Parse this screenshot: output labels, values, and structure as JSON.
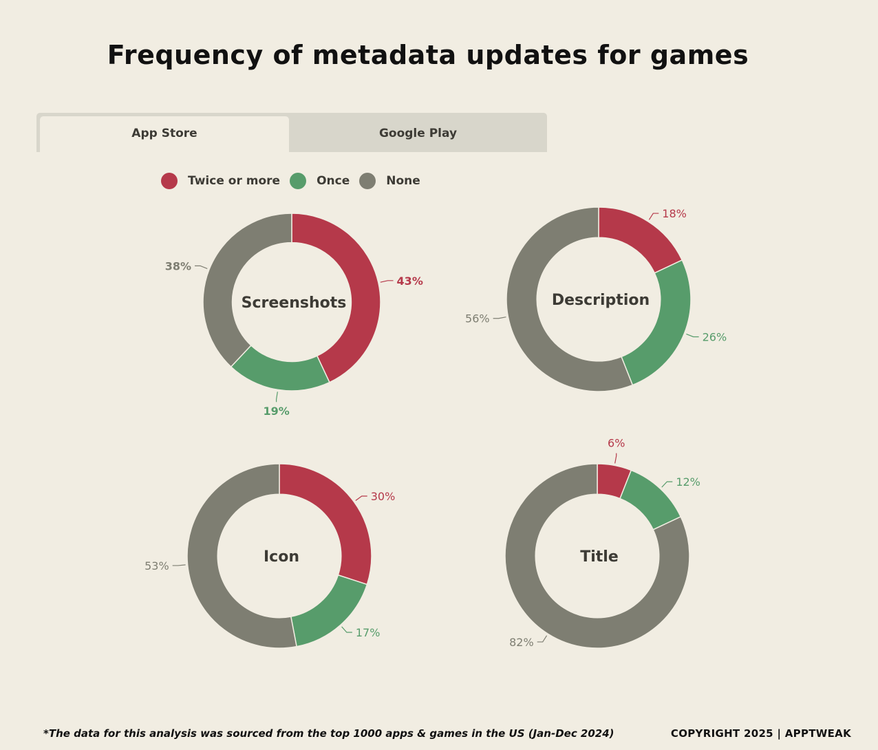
{
  "title": "Frequency of metadata updates for games",
  "tabs": [
    {
      "label": "App Store",
      "active": true
    },
    {
      "label": "Google Play",
      "active": false
    }
  ],
  "legend": [
    {
      "label": "Twice or more",
      "color": "#b5394a"
    },
    {
      "label": "Once",
      "color": "#579c6b"
    },
    {
      "label": "None",
      "color": "#7e7e72"
    }
  ],
  "chart_data": [
    {
      "type": "pie",
      "donut": true,
      "title": "Screenshots",
      "categories": [
        "Twice or more",
        "Once",
        "None"
      ],
      "values": [
        43,
        19,
        38
      ],
      "labels": [
        "43%",
        "19%",
        "38%"
      ]
    },
    {
      "type": "pie",
      "donut": true,
      "title": "Description",
      "categories": [
        "Twice or more",
        "Once",
        "None"
      ],
      "values": [
        18,
        26,
        56
      ],
      "labels": [
        "18%",
        "26%",
        "56%"
      ]
    },
    {
      "type": "pie",
      "donut": true,
      "title": "Icon",
      "categories": [
        "Twice or more",
        "Once",
        "None"
      ],
      "values": [
        30,
        17,
        53
      ],
      "labels": [
        "30%",
        "17%",
        "53%"
      ]
    },
    {
      "type": "pie",
      "donut": true,
      "title": "Title",
      "categories": [
        "Twice or more",
        "Once",
        "None"
      ],
      "values": [
        6,
        12,
        82
      ],
      "labels": [
        "6%",
        "12%",
        "82%"
      ]
    }
  ],
  "footnote": "*The data for this analysis was sourced from the top 1000 apps & games in the US (Jan-Dec 2024)",
  "copyright": "COPYRIGHT 2025 | APPTWEAK"
}
